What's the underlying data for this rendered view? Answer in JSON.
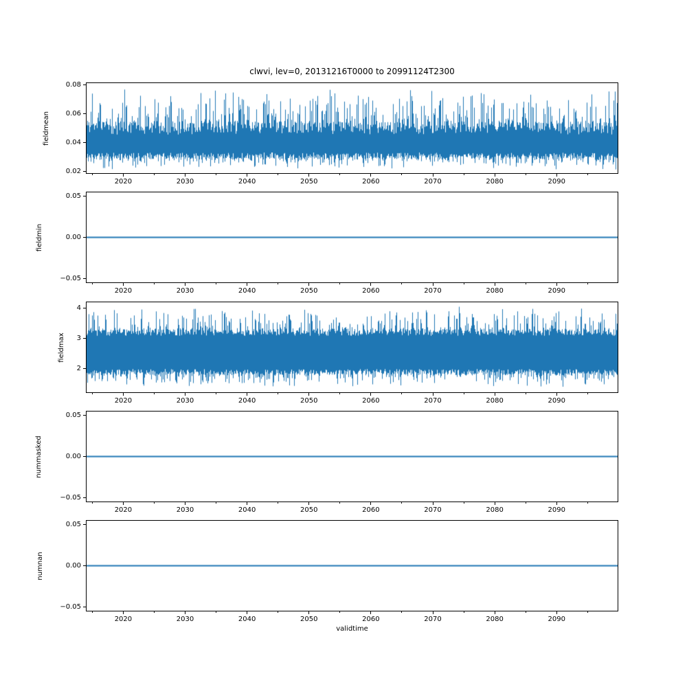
{
  "figure": {
    "title": "clwvi, lev=0, 20131216T0000 to 20991124T2300",
    "background": "#ffffff",
    "line_color": "#1f77b4",
    "axis_color": "#000000"
  },
  "x_axis": {
    "label": "validtime",
    "range": [
      2013.96,
      2099.96
    ],
    "major_ticks": [
      2020,
      2030,
      2040,
      2050,
      2060,
      2070,
      2080,
      2090
    ],
    "major_tick_labels": [
      "2020",
      "2030",
      "2040",
      "2050",
      "2060",
      "2070",
      "2080",
      "2090"
    ],
    "minor_ticks": [
      2015,
      2025,
      2035,
      2045,
      2055,
      2065,
      2075,
      2085,
      2095
    ]
  },
  "chart_data": [
    {
      "type": "line",
      "name": "fieldmean",
      "ylabel": "fieldmean",
      "series_kind": "noisy-band",
      "ylim": [
        0.0186,
        0.0814
      ],
      "yticks": [
        0.02,
        0.04,
        0.06,
        0.08
      ],
      "ytick_labels": [
        "0.02",
        "0.04",
        "0.06",
        "0.08"
      ],
      "stats": {
        "min": 0.021,
        "max": 0.078,
        "typical_low": 0.029,
        "typical_high": 0.055
      },
      "gen": {
        "seed": 11,
        "high_base": 0.0455,
        "high_jit": 0.009,
        "spike": 0.024,
        "spike_pow": 4,
        "low_base": 0.033,
        "low_jit": 0.0045,
        "dip": 0.008,
        "dip_pow": 4
      }
    },
    {
      "type": "line",
      "name": "fieldmin",
      "ylabel": "fieldmin",
      "series_kind": "constant",
      "value": 0.0,
      "ylim": [
        -0.055,
        0.055
      ],
      "yticks": [
        0.05,
        0.0,
        -0.05
      ],
      "ytick_labels": [
        "0.05",
        "0.00",
        "−0.05"
      ]
    },
    {
      "type": "line",
      "name": "fieldmax",
      "ylabel": "fieldmax",
      "series_kind": "noisy-band",
      "ylim": [
        1.21,
        4.19
      ],
      "yticks": [
        2,
        3,
        4
      ],
      "ytick_labels": [
        "2",
        "3",
        "4"
      ],
      "stats": {
        "min": 1.35,
        "max": 4.05,
        "typical_low": 1.95,
        "typical_high": 3.25
      },
      "gen": {
        "seed": 23,
        "high_base": 3.08,
        "high_jit": 0.22,
        "spike": 0.75,
        "spike_pow": 5,
        "low_base": 1.98,
        "low_jit": 0.2,
        "dip": 0.45,
        "dip_pow": 5
      }
    },
    {
      "type": "line",
      "name": "nummasked",
      "ylabel": "nummasked",
      "series_kind": "constant",
      "value": 0.0,
      "ylim": [
        -0.055,
        0.055
      ],
      "yticks": [
        0.05,
        0.0,
        -0.05
      ],
      "ytick_labels": [
        "0.05",
        "0.00",
        "−0.05"
      ]
    },
    {
      "type": "line",
      "name": "numnan",
      "ylabel": "numnan",
      "series_kind": "constant",
      "value": 0.0,
      "ylim": [
        -0.055,
        0.055
      ],
      "yticks": [
        0.05,
        0.0,
        -0.05
      ],
      "ytick_labels": [
        "0.05",
        "0.00",
        "−0.05"
      ]
    }
  ]
}
